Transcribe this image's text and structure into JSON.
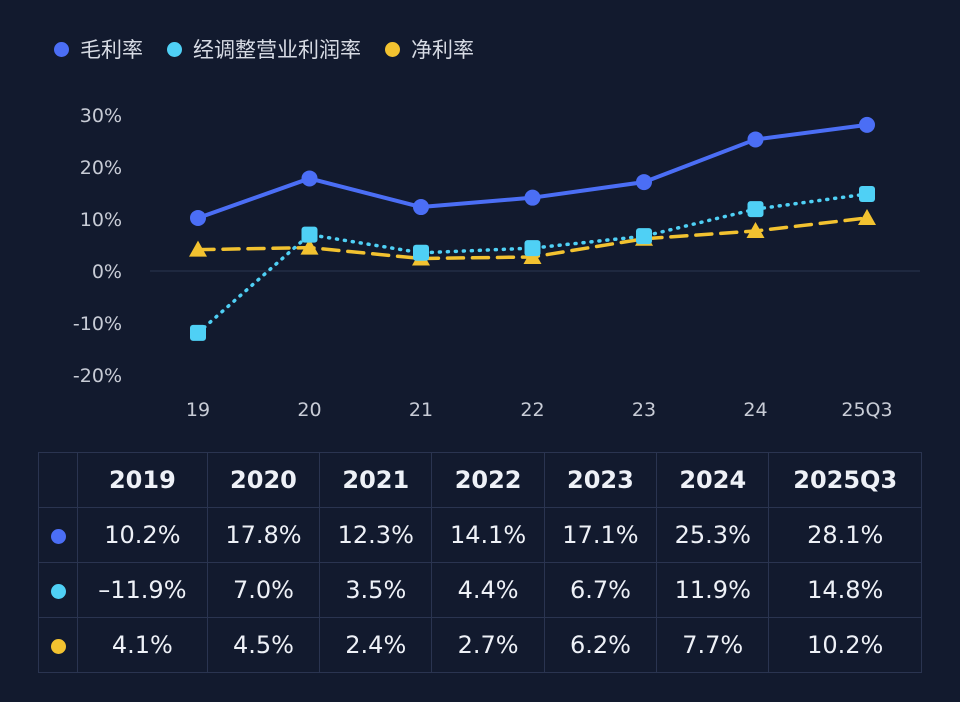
{
  "legend": [
    {
      "label": "毛利率",
      "color": "#4b6ef5"
    },
    {
      "label": "经调整营业利润率",
      "color": "#4fd0f5"
    },
    {
      "label": "净利率",
      "color": "#f2c230"
    }
  ],
  "chart_data": {
    "type": "line",
    "x": [
      "19",
      "20",
      "21",
      "22",
      "23",
      "24",
      "25Q3"
    ],
    "yticks": [
      "30%",
      "20%",
      "10%",
      "0%",
      "-10%",
      "-20%"
    ],
    "ylim": [
      -20,
      30
    ],
    "grid": false,
    "legend_position": "top-left",
    "series": [
      {
        "name": "毛利率",
        "color": "#4b6ef5",
        "marker": "circle",
        "style": "solid",
        "values": [
          10.2,
          17.8,
          12.3,
          14.1,
          17.1,
          25.3,
          28.1
        ]
      },
      {
        "name": "经调整营业利润率",
        "color": "#4fd0f5",
        "marker": "square",
        "style": "dotted",
        "values": [
          -11.9,
          7.0,
          3.5,
          4.4,
          6.7,
          11.9,
          14.8
        ]
      },
      {
        "name": "净利率",
        "color": "#f2c230",
        "marker": "triangle",
        "style": "dashed",
        "values": [
          4.1,
          4.5,
          2.4,
          2.7,
          6.2,
          7.7,
          10.2
        ]
      }
    ]
  },
  "table": {
    "headers": [
      "2019",
      "2020",
      "2021",
      "2022",
      "2023",
      "2024",
      "2025Q3"
    ],
    "rows": [
      {
        "color": "#4b6ef5",
        "cells": [
          "10.2%",
          "17.8%",
          "12.3%",
          "14.1%",
          "17.1%",
          "25.3%",
          "28.1%"
        ]
      },
      {
        "color": "#4fd0f5",
        "cells": [
          "–11.9%",
          "7.0%",
          "3.5%",
          "4.4%",
          "6.7%",
          "11.9%",
          "14.8%"
        ]
      },
      {
        "color": "#f2c230",
        "cells": [
          "4.1%",
          "4.5%",
          "2.4%",
          "2.7%",
          "6.2%",
          "7.7%",
          "10.2%"
        ]
      }
    ]
  }
}
